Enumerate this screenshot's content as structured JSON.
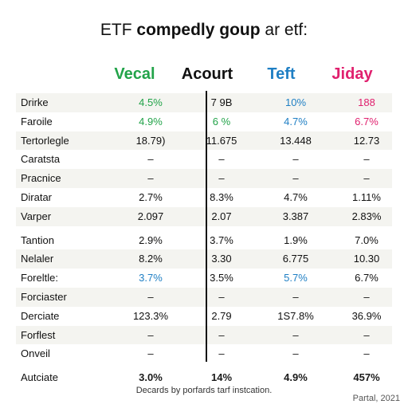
{
  "title": {
    "prefix": "ETF ",
    "bold": "compedly goup",
    "suffix": " ar etf:"
  },
  "columns": [
    {
      "label": "Vecal",
      "color": "#22a349"
    },
    {
      "label": "Acourt",
      "color": "#111111"
    },
    {
      "label": "Teft",
      "color": "#1f7fc4"
    },
    {
      "label": "Jiday",
      "color": "#e0206e"
    }
  ],
  "rows": [
    {
      "label": "Drirke",
      "values": [
        "4.5%",
        "7 9B",
        "10%",
        "188"
      ],
      "colors": [
        "#22a349",
        "#111111",
        "#1f7fc4",
        "#e0206e"
      ]
    },
    {
      "label": "Faroile",
      "values": [
        "4.9%",
        "6 %",
        "4.7%",
        "6.7%"
      ],
      "colors": [
        "#22a349",
        "#22a349",
        "#1f7fc4",
        "#e0206e"
      ]
    },
    {
      "label": "Tertorlegle",
      "values": [
        "18.79)",
        "11.675",
        "13.448",
        "12.73"
      ],
      "colors": [
        "#111111",
        "#111111",
        "#111111",
        "#111111"
      ]
    },
    {
      "label": "Caratsta",
      "values": [
        "–",
        "–",
        "–",
        "–"
      ],
      "colors": [
        "#111111",
        "#111111",
        "#111111",
        "#111111"
      ]
    },
    {
      "label": "Pracnice",
      "values": [
        "–",
        "–",
        "–",
        "–"
      ],
      "colors": [
        "#111111",
        "#111111",
        "#111111",
        "#111111"
      ]
    },
    {
      "label": "Diratar",
      "values": [
        "2.7%",
        "8.3%",
        "4.7%",
        "1.11%"
      ],
      "colors": [
        "#111111",
        "#111111",
        "#111111",
        "#111111"
      ]
    },
    {
      "label": "Varper",
      "values": [
        "2.097",
        "2.07",
        "3.387",
        "2.83%"
      ],
      "colors": [
        "#111111",
        "#111111",
        "#111111",
        "#111111"
      ]
    },
    {
      "label": "Tantion",
      "values": [
        "2.9%",
        "3.7%",
        "1.9%",
        "7.0%"
      ],
      "colors": [
        "#111111",
        "#111111",
        "#111111",
        "#111111"
      ]
    },
    {
      "label": "Nelaler",
      "values": [
        "8.2%",
        "3.30",
        "6.775",
        "10.30"
      ],
      "colors": [
        "#111111",
        "#111111",
        "#111111",
        "#111111"
      ]
    },
    {
      "label": "Foreltle:",
      "values": [
        "3.7%",
        "3.5%",
        "5.7%",
        "6.7%"
      ],
      "colors": [
        "#1f7fc4",
        "#111111",
        "#1f7fc4",
        "#111111"
      ]
    },
    {
      "label": "Forciaster",
      "values": [
        "–",
        "–",
        "–",
        "–"
      ],
      "colors": [
        "#111111",
        "#111111",
        "#111111",
        "#111111"
      ]
    },
    {
      "label": "Derciate",
      "values": [
        "123.3%",
        "2.79",
        "1S7.8%",
        "36.9%"
      ],
      "colors": [
        "#111111",
        "#111111",
        "#111111",
        "#111111"
      ]
    },
    {
      "label": "Forflest",
      "values": [
        "–",
        "–",
        "–",
        "–"
      ],
      "colors": [
        "#111111",
        "#111111",
        "#111111",
        "#111111"
      ]
    },
    {
      "label": "Onveil",
      "values": [
        "–",
        "–",
        "–",
        "–"
      ],
      "colors": [
        "#111111",
        "#111111",
        "#111111",
        "#111111"
      ]
    }
  ],
  "total_row": {
    "label": "Autciate",
    "values": [
      "3.0%",
      "14%",
      "4.9%",
      "457%"
    ]
  },
  "footer": "Decards by porfards tarf instcation.",
  "corner_note": "Partal, 2021"
}
